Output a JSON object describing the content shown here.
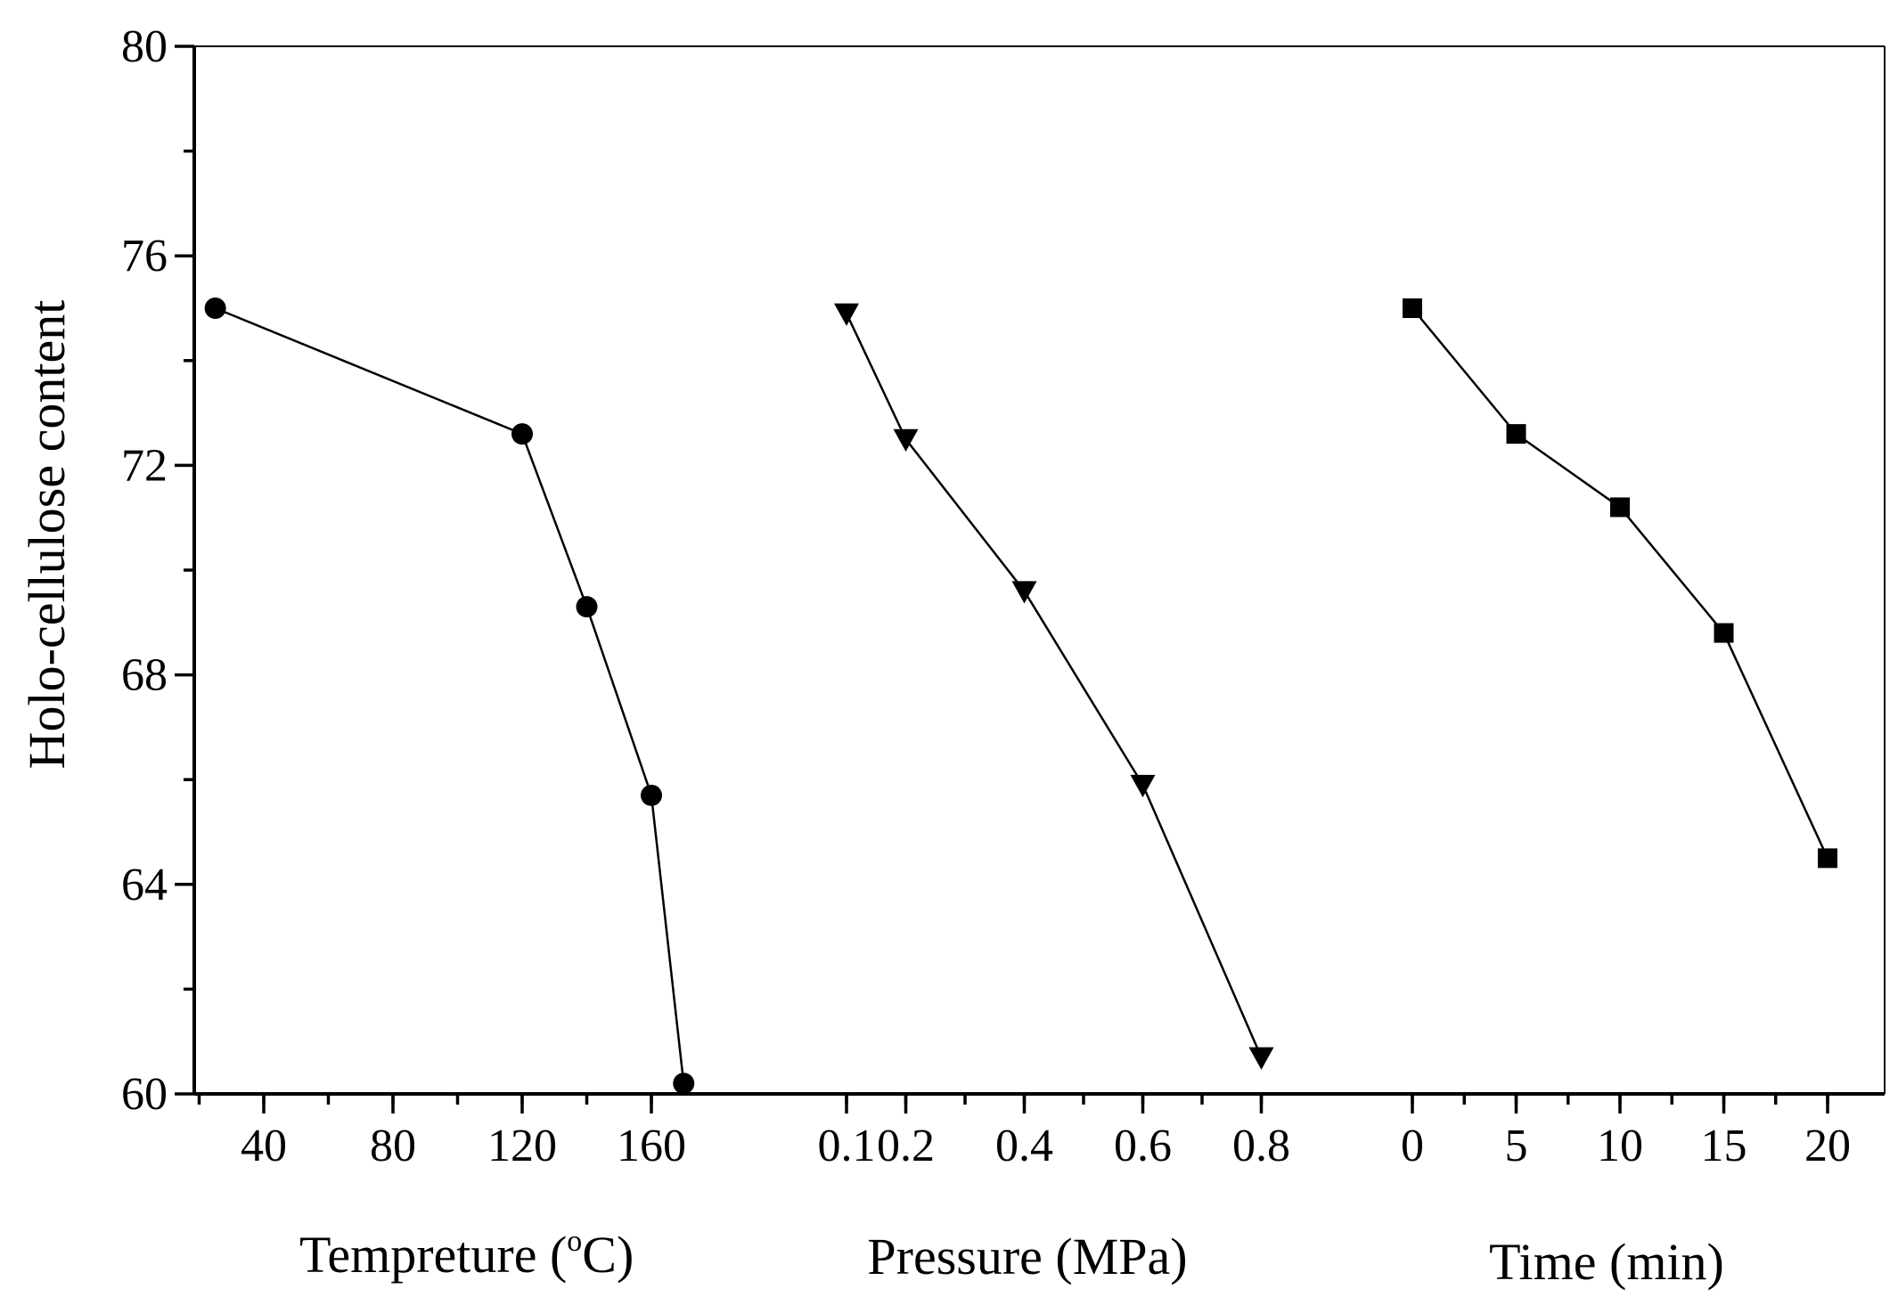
{
  "chart_data": {
    "type": "line",
    "ylabel": "Holo-cellulose content",
    "ylim": [
      60,
      80
    ],
    "y_ticks": [
      "60",
      "64",
      "68",
      "72",
      "76",
      "80"
    ],
    "grid": false,
    "panels": [
      {
        "name": "temperature",
        "xlabel": "Tempreture (",
        "xlabel_sup": "o",
        "xlabel_tail": "C)",
        "x_ticks": [
          "40",
          "80",
          "120",
          "160"
        ],
        "marker": "circle",
        "x": [
          25,
          120,
          140,
          160,
          170
        ],
        "y": [
          75.0,
          72.6,
          69.3,
          65.7,
          60.2
        ]
      },
      {
        "name": "pressure",
        "xlabel": "Pressure (MPa)",
        "x_ticks": [
          "0.1",
          "0.2",
          "0.4",
          "0.6",
          "0.8"
        ],
        "marker": "triangle-down",
        "x": [
          0.1,
          0.2,
          0.4,
          0.6,
          0.8
        ],
        "y": [
          74.9,
          72.5,
          69.6,
          65.9,
          60.7
        ]
      },
      {
        "name": "time",
        "xlabel": "Time (min)",
        "x_ticks": [
          "0",
          "5",
          "10",
          "15",
          "20"
        ],
        "marker": "square",
        "x": [
          0,
          5,
          10,
          15,
          20
        ],
        "y": [
          75.0,
          72.6,
          71.2,
          68.8,
          64.5
        ]
      }
    ]
  }
}
